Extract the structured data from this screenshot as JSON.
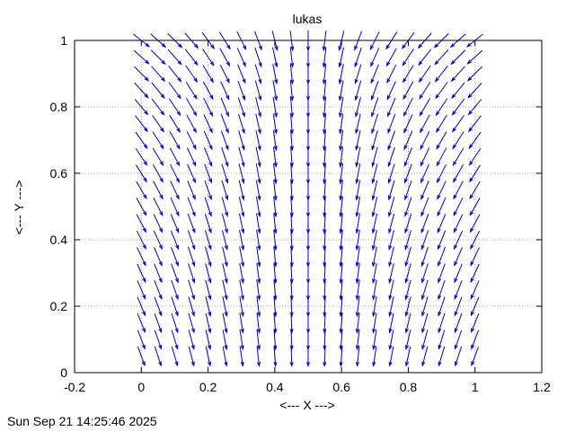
{
  "chart_data": {
    "type": "vector_field",
    "title": "lukas",
    "xlabel": "<--- X --->",
    "ylabel": "<--- Y --->",
    "xlim": [
      -0.2,
      1.2
    ],
    "ylim": [
      0,
      1
    ],
    "x_ticks": [
      -0.2,
      0,
      0.2,
      0.4,
      0.6,
      0.8,
      1,
      1.2
    ],
    "y_ticks": [
      0,
      0.2,
      0.4,
      0.6,
      0.8,
      1
    ],
    "x_tick_labels": [
      "-0.2",
      "0",
      "0.2",
      "0.4",
      "0.6",
      "0.8",
      "1",
      "1.2"
    ],
    "y_tick_labels": [
      "0",
      "0.2",
      "0.4",
      "0.6",
      "0.8",
      "1"
    ],
    "grid": true,
    "grid_x_at": [
      0,
      0.2,
      0.4,
      0.6,
      0.8,
      1
    ],
    "grid_y_at": [
      0.2,
      0.4,
      0.6,
      0.8
    ],
    "arrow_color": "#0000cc",
    "field": {
      "x_start": 0,
      "x_step": 0.05,
      "x_count": 21,
      "y_start": 0.05,
      "y_step": 0.05,
      "y_count": 20,
      "direction_center_x": 0.5,
      "direction_source_y": 1.4
    },
    "timestamp": "Sun Sep 21 14:25:46 2025"
  }
}
